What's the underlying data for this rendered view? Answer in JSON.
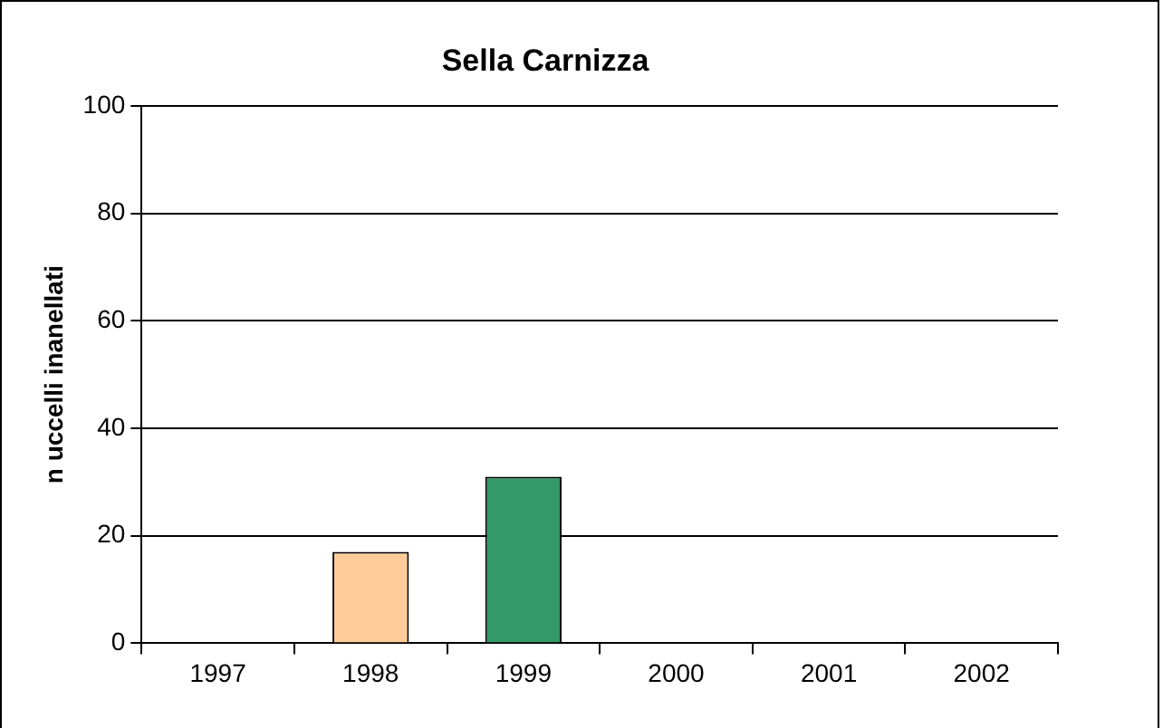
{
  "chart_data": {
    "type": "bar",
    "title": "Sella Carnizza",
    "ylabel": "n uccelli inanellati",
    "categories": [
      "1997",
      "1998",
      "1999",
      "2000",
      "2001",
      "2002"
    ],
    "values": [
      null,
      17,
      31,
      null,
      null,
      null
    ],
    "colors": [
      "#ffcc99",
      "#ffcc99",
      "#339966",
      "#339966",
      "#339966",
      "#339966"
    ],
    "ylim": [
      0,
      100
    ],
    "yticks": [
      0,
      20,
      40,
      60,
      80,
      100
    ],
    "grid": "y",
    "legend": false
  }
}
